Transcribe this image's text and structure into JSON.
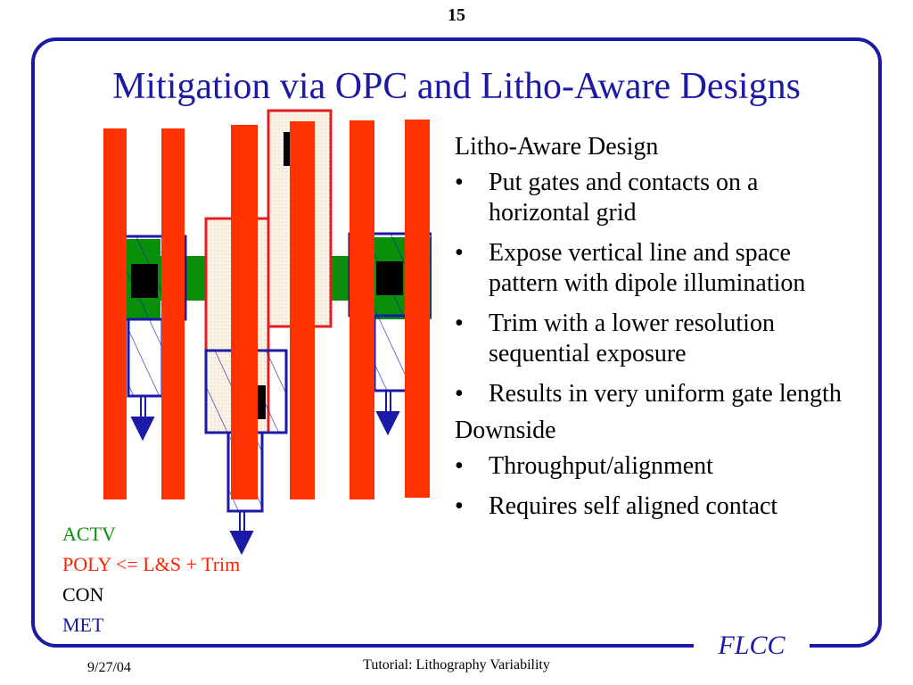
{
  "page_number": "15",
  "title": "Mitigation via OPC and Litho-Aware Designs",
  "bullets": {
    "heading": "Litho-Aware Design",
    "items": [
      "Put gates and contacts on a horizontal grid",
      "Expose vertical line and space pattern with dipole illumination",
      "Trim with a lower resolution sequential exposure",
      "Results in very uniform gate length"
    ],
    "bullet_symbol": "•",
    "downside_heading": "Downside",
    "downside_items": [
      "Throughput/alignment",
      "Requires self aligned contact"
    ]
  },
  "legend": {
    "actv": "ACTV",
    "poly": "POLY <= L&S + Trim",
    "con": "CON",
    "met": "MET"
  },
  "colors": {
    "actv": "#0a8f0a",
    "poly": "#ff3300",
    "con": "#000000",
    "met": "#1a1aa6",
    "title": "#1a1aa6"
  },
  "footer": {
    "date": "9/27/04",
    "center": "Tutorial: Lithography Variability",
    "logo": "FLCC"
  }
}
